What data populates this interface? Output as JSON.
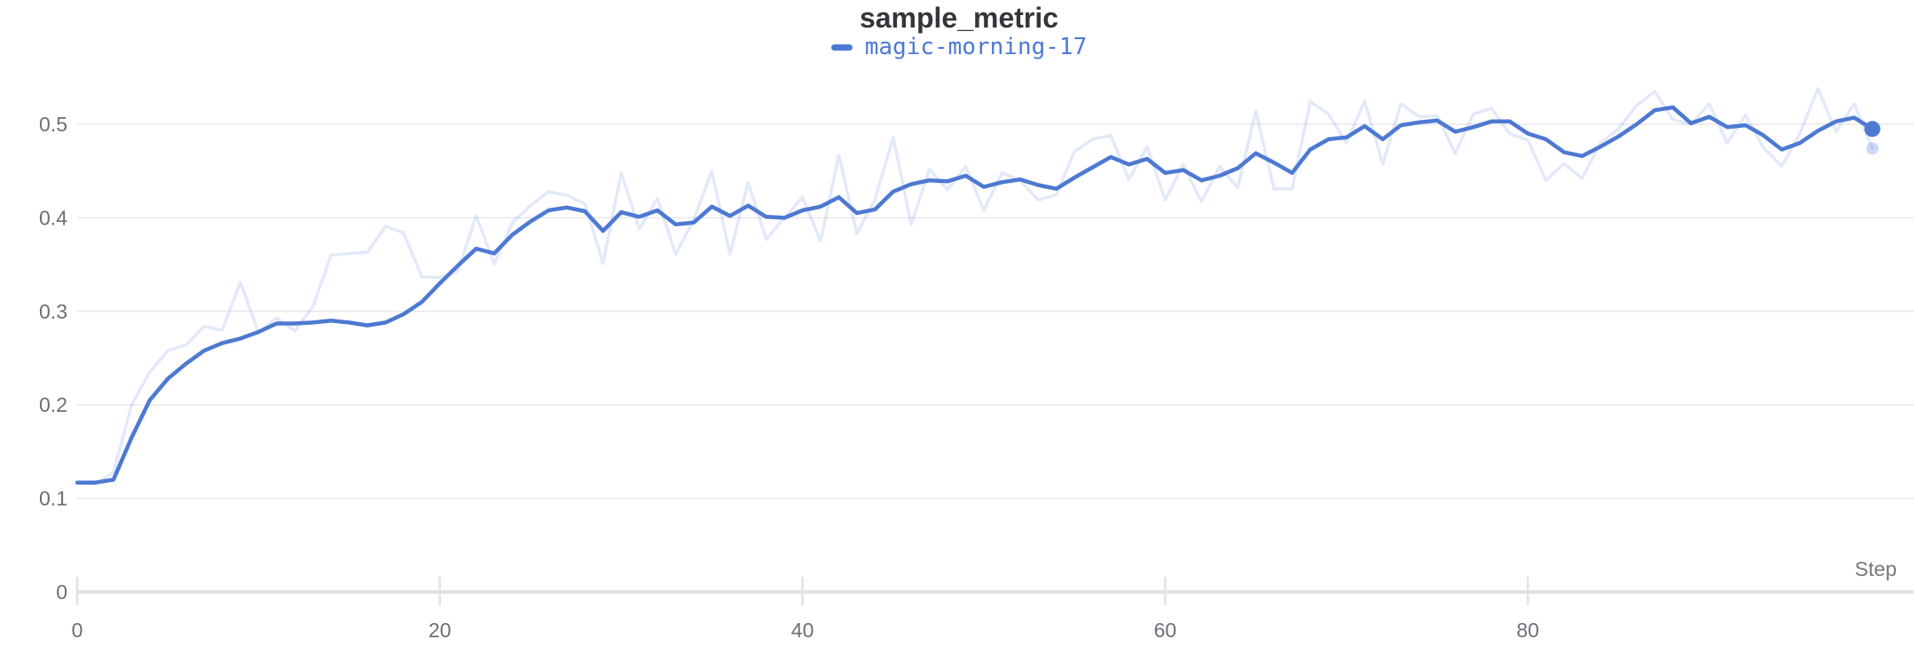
{
  "panel": {
    "title": "sample_metric",
    "legend": [
      {
        "label": "magic-morning-17",
        "color": "#4d79d2"
      }
    ],
    "xlabel": "Step"
  },
  "colors": {
    "run_blue": "#4d79d2",
    "raw_line_opacity": 0.16,
    "gridline": "#e9e9ed",
    "axis_line": "#e2e2e6",
    "tick_label": "#6e6e79",
    "title_text": "#35363c",
    "xaxis_title_text": "#77777f",
    "background": "#ffffff"
  },
  "chart_data": {
    "type": "line",
    "title": "sample_metric",
    "xlabel": "Step",
    "ylabel": "",
    "x_range": [
      0,
      99
    ],
    "ylim": [
      0,
      0.55
    ],
    "x_ticks": [
      0,
      20,
      40,
      60,
      80
    ],
    "y_ticks": [
      0,
      0.1,
      0.2,
      0.3,
      0.4,
      0.5
    ],
    "grid": "horizontal-only",
    "legend_position": "top-center",
    "series": [
      {
        "name": "magic-morning-17 (original)",
        "role": "raw",
        "color": "#4d79d2",
        "opacity": 0.16,
        "end_marker": true,
        "values": [
          0.117,
          0.115,
          0.128,
          0.2,
          0.235,
          0.258,
          0.264,
          0.284,
          0.28,
          0.331,
          0.277,
          0.293,
          0.279,
          0.305,
          0.36,
          0.362,
          0.363,
          0.391,
          0.384,
          0.337,
          0.336,
          0.343,
          0.402,
          0.351,
          0.395,
          0.413,
          0.428,
          0.424,
          0.415,
          0.351,
          0.448,
          0.388,
          0.421,
          0.361,
          0.398,
          0.45,
          0.361,
          0.438,
          0.377,
          0.4,
          0.422,
          0.375,
          0.467,
          0.383,
          0.42,
          0.486,
          0.393,
          0.452,
          0.43,
          0.455,
          0.408,
          0.448,
          0.44,
          0.419,
          0.425,
          0.471,
          0.484,
          0.488,
          0.441,
          0.476,
          0.419,
          0.457,
          0.417,
          0.455,
          0.432,
          0.514,
          0.431,
          0.431,
          0.524,
          0.511,
          0.48,
          0.525,
          0.457,
          0.522,
          0.508,
          0.509,
          0.469,
          0.511,
          0.517,
          0.49,
          0.483,
          0.44,
          0.458,
          0.442,
          0.48,
          0.495,
          0.52,
          0.535,
          0.505,
          0.5,
          0.522,
          0.48,
          0.51,
          0.475,
          0.455,
          0.49,
          0.538,
          0.492,
          0.522,
          0.474
        ]
      },
      {
        "name": "magic-morning-17 (smoothed)",
        "role": "smoothed",
        "color": "#4d79d2",
        "opacity": 1,
        "end_marker": true,
        "values": [
          0.117,
          0.117,
          0.12,
          0.165,
          0.205,
          0.228,
          0.244,
          0.258,
          0.266,
          0.271,
          0.278,
          0.287,
          0.287,
          0.288,
          0.29,
          0.288,
          0.285,
          0.288,
          0.297,
          0.31,
          0.33,
          0.349,
          0.367,
          0.362,
          0.382,
          0.396,
          0.408,
          0.411,
          0.407,
          0.386,
          0.406,
          0.401,
          0.408,
          0.393,
          0.395,
          0.412,
          0.402,
          0.413,
          0.401,
          0.4,
          0.408,
          0.412,
          0.422,
          0.405,
          0.409,
          0.428,
          0.436,
          0.44,
          0.439,
          0.445,
          0.433,
          0.438,
          0.441,
          0.435,
          0.431,
          0.443,
          0.454,
          0.465,
          0.457,
          0.463,
          0.448,
          0.451,
          0.44,
          0.445,
          0.453,
          0.469,
          0.459,
          0.448,
          0.473,
          0.484,
          0.486,
          0.498,
          0.484,
          0.499,
          0.502,
          0.504,
          0.492,
          0.497,
          0.503,
          0.503,
          0.49,
          0.484,
          0.47,
          0.466,
          0.476,
          0.487,
          0.5,
          0.515,
          0.518,
          0.501,
          0.508,
          0.497,
          0.499,
          0.488,
          0.473,
          0.48,
          0.493,
          0.503,
          0.507,
          0.495
        ]
      }
    ]
  }
}
